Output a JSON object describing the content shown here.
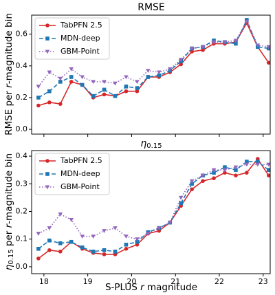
{
  "chart_data": [
    {
      "type": "line",
      "title": [
        "RMSE"
      ],
      "ylabel": [
        "RMSE per ",
        "r",
        "-magnitude bin"
      ],
      "x": [
        17.875,
        18.125,
        18.375,
        18.625,
        18.875,
        19.125,
        19.375,
        19.625,
        19.875,
        20.125,
        20.375,
        20.625,
        20.875,
        21.125,
        21.375,
        21.625,
        21.875,
        22.125,
        22.375,
        22.625,
        22.875,
        23.125
      ],
      "xlim": [
        17.72,
        23.16
      ],
      "xticks": [
        18,
        19,
        20,
        21,
        22,
        23
      ],
      "ylim": [
        -0.03,
        0.72
      ],
      "yticks": [
        0.0,
        0.2,
        0.4,
        0.6
      ],
      "ytick_labels": [
        "0.0",
        "0.2",
        "0.4",
        "0.6"
      ],
      "legend": "upper left",
      "series": [
        {
          "name": "TabPFN 2.5",
          "color": "#d62728",
          "marker": "circle",
          "dash": "solid",
          "values": [
            0.15,
            0.17,
            0.16,
            0.3,
            0.28,
            0.2,
            0.22,
            0.21,
            0.24,
            0.24,
            0.33,
            0.33,
            0.36,
            0.41,
            0.49,
            0.5,
            0.54,
            0.54,
            0.55,
            0.67,
            0.52,
            0.42
          ]
        },
        {
          "name": "MDN-deep",
          "color": "#1f77b4",
          "marker": "square",
          "dash": "dashed",
          "values": [
            0.2,
            0.24,
            0.3,
            0.33,
            0.28,
            0.21,
            0.25,
            0.21,
            0.27,
            0.26,
            0.33,
            0.34,
            0.37,
            0.43,
            0.51,
            0.52,
            0.56,
            0.55,
            0.54,
            0.69,
            0.52,
            0.51
          ]
        },
        {
          "name": "GBM-Point",
          "color": "#9467bd",
          "marker": "triangle",
          "dash": "dotted",
          "values": [
            0.27,
            0.36,
            0.32,
            0.38,
            0.33,
            0.3,
            0.3,
            0.29,
            0.33,
            0.3,
            0.37,
            0.36,
            0.38,
            0.44,
            0.51,
            0.52,
            0.55,
            0.55,
            0.56,
            0.68,
            0.53,
            0.52
          ]
        }
      ]
    },
    {
      "type": "line",
      "title": [
        "η",
        "0.15"
      ],
      "ylabel": [
        "η",
        "0.15",
        " per ",
        "r",
        "-magnitude bin"
      ],
      "xlabel": [
        "S-PLUS ",
        "r",
        " magnitude"
      ],
      "x": [
        17.875,
        18.125,
        18.375,
        18.625,
        18.875,
        19.125,
        19.375,
        19.625,
        19.875,
        20.125,
        20.375,
        20.625,
        20.875,
        21.125,
        21.375,
        21.625,
        21.875,
        22.125,
        22.375,
        22.625,
        22.875,
        23.125
      ],
      "xlim": [
        17.72,
        23.16
      ],
      "xticks": [
        18,
        19,
        20,
        21,
        22,
        23
      ],
      "ylim": [
        -0.025,
        0.42
      ],
      "yticks": [
        0.0,
        0.1,
        0.2,
        0.3,
        0.4
      ],
      "ytick_labels": [
        "0.0",
        "0.1",
        "0.2",
        "0.3",
        "0.4"
      ],
      "legend": "upper left",
      "series": [
        {
          "name": "TabPFN 2.5",
          "color": "#d62728",
          "marker": "circle",
          "dash": "solid",
          "values": [
            0.03,
            0.06,
            0.055,
            0.09,
            0.065,
            0.05,
            0.045,
            0.045,
            0.065,
            0.08,
            0.12,
            0.13,
            0.16,
            0.22,
            0.28,
            0.31,
            0.32,
            0.34,
            0.33,
            0.34,
            0.39,
            0.33
          ]
        },
        {
          "name": "MDN-deep",
          "color": "#1f77b4",
          "marker": "square",
          "dash": "dashed",
          "values": [
            0.065,
            0.095,
            0.085,
            0.09,
            0.07,
            0.055,
            0.06,
            0.055,
            0.08,
            0.09,
            0.125,
            0.14,
            0.16,
            0.23,
            0.3,
            0.33,
            0.34,
            0.36,
            0.35,
            0.38,
            0.38,
            0.35
          ]
        },
        {
          "name": "GBM-Point",
          "color": "#9467bd",
          "marker": "triangle",
          "dash": "dotted",
          "values": [
            0.12,
            0.14,
            0.19,
            0.17,
            0.11,
            0.11,
            0.13,
            0.14,
            0.11,
            0.1,
            0.12,
            0.14,
            0.16,
            0.25,
            0.31,
            0.33,
            0.35,
            0.35,
            0.36,
            0.37,
            0.37,
            0.37
          ]
        }
      ]
    }
  ]
}
